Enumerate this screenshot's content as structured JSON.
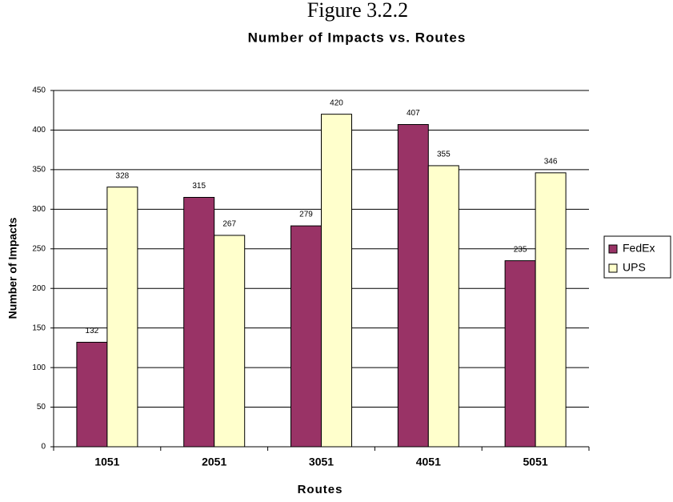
{
  "chart_data": {
    "type": "bar",
    "figure_label": "Figure 3.2.2",
    "title": "Number of Impacts vs. Routes",
    "x_label": "Routes",
    "y_label": "Number of Impacts",
    "categories": [
      "1051",
      "2051",
      "3051",
      "4051",
      "5051"
    ],
    "series": [
      {
        "name": "FedEx",
        "color": "#993366",
        "values": [
          132,
          315,
          279,
          407,
          235
        ]
      },
      {
        "name": "UPS",
        "color": "#ffffcc",
        "values": [
          328,
          267,
          420,
          355,
          346
        ]
      }
    ],
    "ylim": [
      0,
      450
    ],
    "yticks": [
      0,
      50,
      100,
      150,
      200,
      250,
      300,
      350,
      400,
      450
    ],
    "grid": true,
    "legend": "right"
  }
}
